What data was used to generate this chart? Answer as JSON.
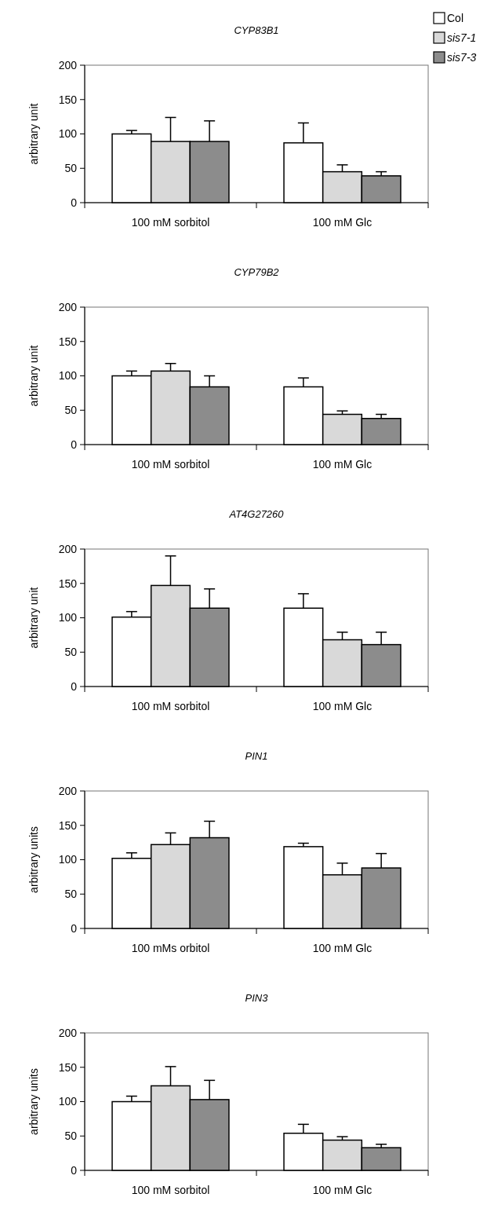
{
  "chart_data": [
    {
      "type": "bar",
      "title": "CYP83B1",
      "ylabel": "arbitrary unit",
      "categories": [
        "100 mM sorbitol",
        "100 mM Glc"
      ],
      "ylim": [
        0,
        200
      ],
      "yticks": [
        0,
        50,
        100,
        150,
        200
      ],
      "legend": "top right",
      "series": [
        {
          "name": "Col",
          "color": "#ffffff",
          "values": [
            100,
            87
          ],
          "errors": [
            [
              100,
              105
            ],
            [
              87,
              116
            ]
          ]
        },
        {
          "name": "sis7-1",
          "color": "#d9d9d9",
          "values": [
            89,
            45
          ],
          "errors": [
            [
              89,
              124
            ],
            [
              45,
              55
            ]
          ]
        },
        {
          "name": "sis7-3",
          "color": "#8c8c8c",
          "values": [
            89,
            39
          ],
          "errors": [
            [
              89,
              119
            ],
            [
              39,
              45
            ]
          ]
        }
      ]
    },
    {
      "type": "bar",
      "title": "CYP79B2",
      "ylabel": "arbitrary unit",
      "categories": [
        "100 mM sorbitol",
        "100 mM Glc"
      ],
      "ylim": [
        0,
        200
      ],
      "yticks": [
        0,
        50,
        100,
        150,
        200
      ],
      "series": [
        {
          "color": "#ffffff",
          "values": [
            100,
            84
          ],
          "errors": [
            [
              100,
              107
            ],
            [
              84,
              97
            ]
          ]
        },
        {
          "color": "#d9d9d9",
          "values": [
            107,
            44
          ],
          "errors": [
            [
              107,
              118
            ],
            [
              44,
              49
            ]
          ]
        },
        {
          "color": "#8c8c8c",
          "values": [
            84,
            38
          ],
          "errors": [
            [
              84,
              100
            ],
            [
              38,
              44
            ]
          ]
        }
      ]
    },
    {
      "type": "bar",
      "title": "AT4G27260",
      "ylabel": "arbitrary unit",
      "categories": [
        "100 mM sorbitol",
        "100 mM Glc"
      ],
      "ylim": [
        0,
        200
      ],
      "yticks": [
        0,
        50,
        100,
        150,
        200
      ],
      "series": [
        {
          "color": "#ffffff",
          "values": [
            101,
            114
          ],
          "errors": [
            [
              101,
              109
            ],
            [
              114,
              135
            ]
          ]
        },
        {
          "color": "#d9d9d9",
          "values": [
            147,
            68
          ],
          "errors": [
            [
              147,
              190
            ],
            [
              68,
              79
            ]
          ]
        },
        {
          "color": "#8c8c8c",
          "values": [
            114,
            61
          ],
          "errors": [
            [
              114,
              142
            ],
            [
              61,
              79
            ]
          ]
        }
      ]
    },
    {
      "type": "bar",
      "title": "PIN1",
      "ylabel": "arbitrary units",
      "categories": [
        "100 mMs orbitol",
        "100 mM Glc"
      ],
      "ylim": [
        0,
        200
      ],
      "yticks": [
        0,
        50,
        100,
        150,
        200
      ],
      "series": [
        {
          "color": "#ffffff",
          "values": [
            102,
            119
          ],
          "errors": [
            [
              102,
              110
            ],
            [
              119,
              124
            ]
          ]
        },
        {
          "color": "#d9d9d9",
          "values": [
            122,
            78
          ],
          "errors": [
            [
              122,
              139
            ],
            [
              78,
              95
            ]
          ]
        },
        {
          "color": "#8c8c8c",
          "values": [
            132,
            88
          ],
          "errors": [
            [
              132,
              156
            ],
            [
              88,
              109
            ]
          ]
        }
      ]
    },
    {
      "type": "bar",
      "title": "PIN3",
      "ylabel": "arbitrary units",
      "categories": [
        "100 mM sorbitol",
        "100 mM Glc"
      ],
      "ylim": [
        0,
        200
      ],
      "yticks": [
        0,
        50,
        100,
        150,
        200
      ],
      "series": [
        {
          "color": "#ffffff",
          "values": [
            100,
            54
          ],
          "errors": [
            [
              100,
              108
            ],
            [
              54,
              67
            ]
          ]
        },
        {
          "color": "#d9d9d9",
          "values": [
            123,
            44
          ],
          "errors": [
            [
              123,
              151
            ],
            [
              44,
              49
            ]
          ]
        },
        {
          "color": "#8c8c8c",
          "values": [
            103,
            33
          ],
          "errors": [
            [
              103,
              131
            ],
            [
              33,
              38
            ]
          ]
        }
      ]
    }
  ]
}
